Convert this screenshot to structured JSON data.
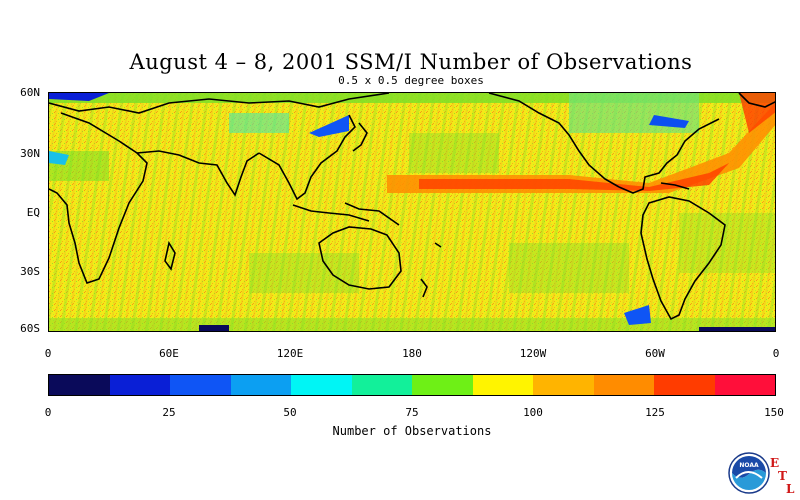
{
  "title": "August 4 – 8, 2001 SSM/I Number of Observations",
  "subtitle": "0.5 x 0.5 degree boxes",
  "map": {
    "lat_labels": [
      "60N",
      "30N",
      "EQ",
      "30S",
      "60S"
    ],
    "lon_labels": [
      "0",
      "60E",
      "120E",
      "180",
      "120W",
      "60W",
      "0"
    ],
    "latitude_range": [
      -60,
      60
    ],
    "longitude_range": [
      0,
      360
    ]
  },
  "colorbar": {
    "title": "Number of Observations",
    "tick_labels": [
      "0",
      "25",
      "50",
      "75",
      "100",
      "125",
      "150"
    ],
    "range": [
      0,
      150
    ],
    "colors": [
      "#0a0a5a",
      "#0a1fd6",
      "#0f55f5",
      "#0c9ff2",
      "#00f5f5",
      "#12f09a",
      "#6ef016",
      "#fff400",
      "#ffb400",
      "#ff8c00",
      "#ff3c00",
      "#ff0f3a"
    ]
  },
  "logo": {
    "icon": "noaa-logo-icon",
    "text": "NOAA",
    "letters": [
      "E",
      "T",
      "L"
    ]
  }
}
